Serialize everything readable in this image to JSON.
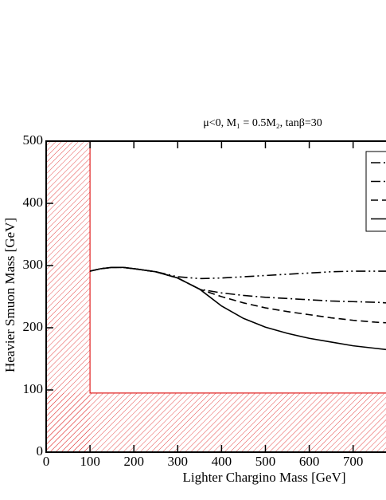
{
  "chart_data": {
    "type": "line",
    "title": "μ<0,   M₁ = 0.5M₂, tanβ=30",
    "xlabel": "Lighter Chargino Mass  [GeV]",
    "ylabel": "Heavier Smuon Mass  [GeV]",
    "x": [
      100,
      125,
      150,
      175,
      200,
      250,
      300,
      350,
      400,
      450,
      500,
      550,
      600,
      650,
      700,
      750,
      775
    ],
    "series": [
      {
        "style": "dash-dot-dot",
        "color": "#000000",
        "values": [
          291,
          295,
          297,
          297,
          295,
          290,
          282,
          279,
          280,
          282,
          284,
          286,
          288,
          290,
          291,
          291,
          291
        ]
      },
      {
        "style": "dash-dot",
        "color": "#000000",
        "values": [
          291,
          295,
          297,
          297,
          295,
          290,
          280,
          262,
          256,
          252,
          249,
          247,
          245,
          243,
          242,
          241,
          240
        ]
      },
      {
        "style": "dashed",
        "color": "#000000",
        "values": [
          291,
          295,
          297,
          297,
          295,
          290,
          280,
          262,
          250,
          240,
          232,
          226,
          221,
          216,
          212,
          209,
          208
        ]
      },
      {
        "style": "solid",
        "color": "#000000",
        "values": [
          291,
          295,
          297,
          297,
          295,
          290,
          280,
          262,
          235,
          215,
          201,
          191,
          183,
          177,
          171,
          167,
          165
        ]
      }
    ],
    "excluded": {
      "x_max": 100,
      "y_max": 95,
      "color": "#e02020"
    },
    "xlim": [
      0,
      775
    ],
    "xticks": [
      0,
      100,
      200,
      300,
      400,
      500,
      600,
      700
    ],
    "ylim": [
      0,
      500
    ],
    "yticks": [
      0,
      100,
      200,
      300,
      400,
      500
    ],
    "legend": "upper right"
  }
}
